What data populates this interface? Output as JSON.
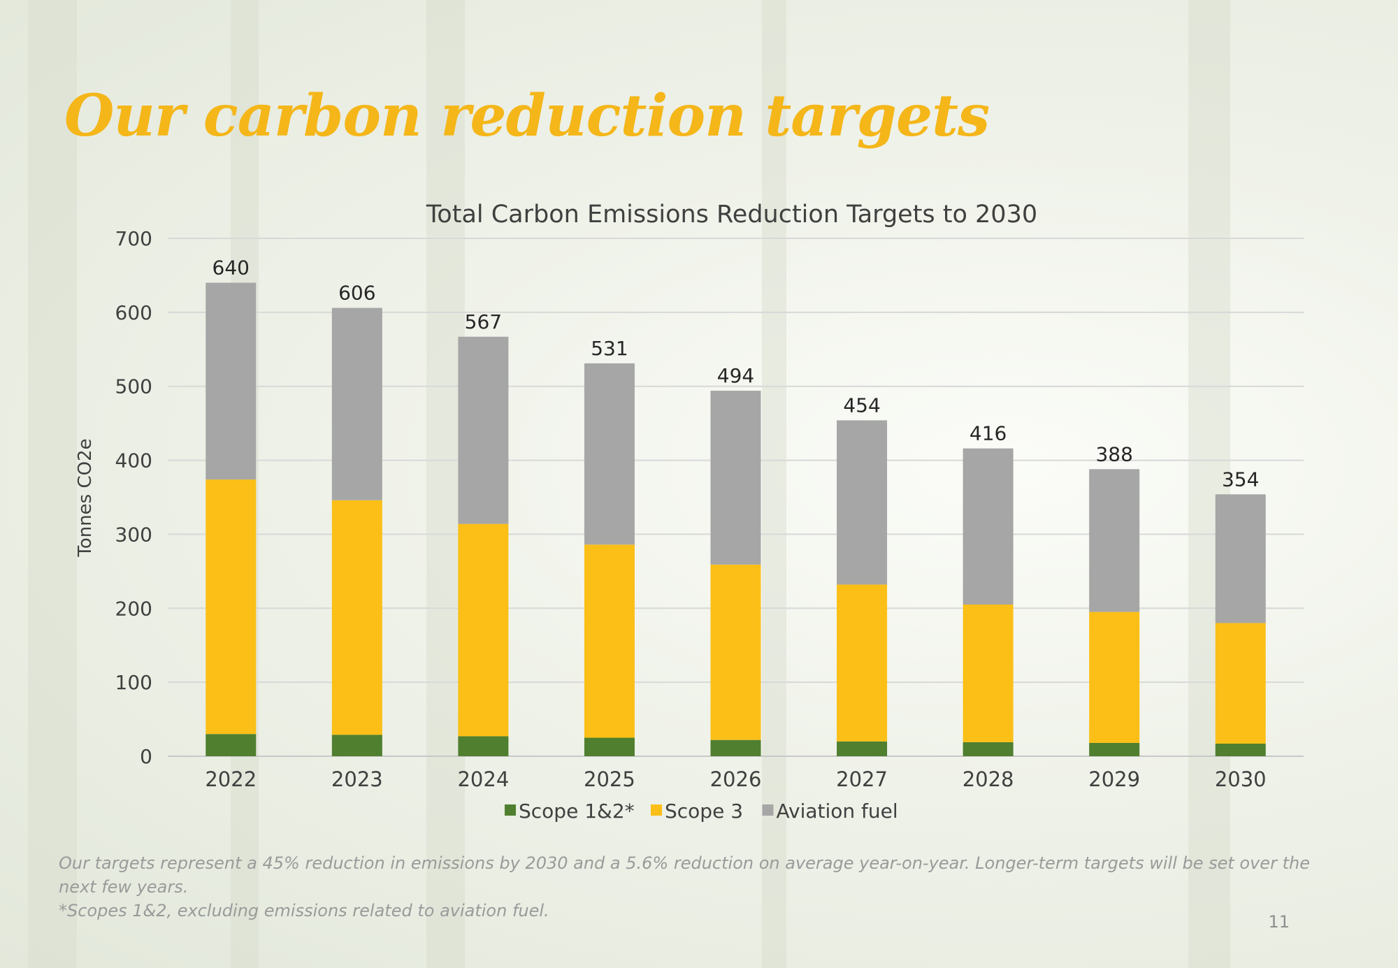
{
  "page": {
    "title": "Our carbon reduction targets",
    "caption_line1": "Our targets represent a 45% reduction in emissions by 2030 and a 5.6% reduction on average year-on-year. Longer-term targets will be set over the next few years.",
    "caption_line2": "*Scopes 1&2, excluding emissions related to aviation fuel.",
    "page_number": "11",
    "colors": {
      "title": "#f4b619",
      "scope12": "#4f7f2f",
      "scope3": "#fbbf17",
      "aviation": "#a6a6a6"
    }
  },
  "chart_data": {
    "type": "bar",
    "stacked": true,
    "title": "Total Carbon Emissions Reduction Targets to 2030",
    "xlabel": "",
    "ylabel": "Tonnes CO2e",
    "ylim": [
      0,
      700
    ],
    "yticks": [
      0,
      100,
      200,
      300,
      400,
      500,
      600,
      700
    ],
    "grid": true,
    "legend_position": "bottom",
    "categories": [
      "2022",
      "2023",
      "2024",
      "2025",
      "2026",
      "2027",
      "2028",
      "2029",
      "2030"
    ],
    "series": [
      {
        "name": "Scope 1&2*",
        "color": "#4f7f2f",
        "values": [
          30,
          29,
          27,
          25,
          22,
          20,
          19,
          18,
          17
        ]
      },
      {
        "name": "Scope 3",
        "color": "#fbbf17",
        "values": [
          344,
          317,
          287,
          261,
          237,
          212,
          186,
          177,
          163
        ]
      },
      {
        "name": "Aviation fuel",
        "color": "#a6a6a6",
        "values": [
          266,
          260,
          253,
          245,
          235,
          222,
          211,
          193,
          174
        ]
      }
    ],
    "totals": [
      640,
      606,
      567,
      531,
      494,
      454,
      416,
      388,
      354
    ]
  }
}
